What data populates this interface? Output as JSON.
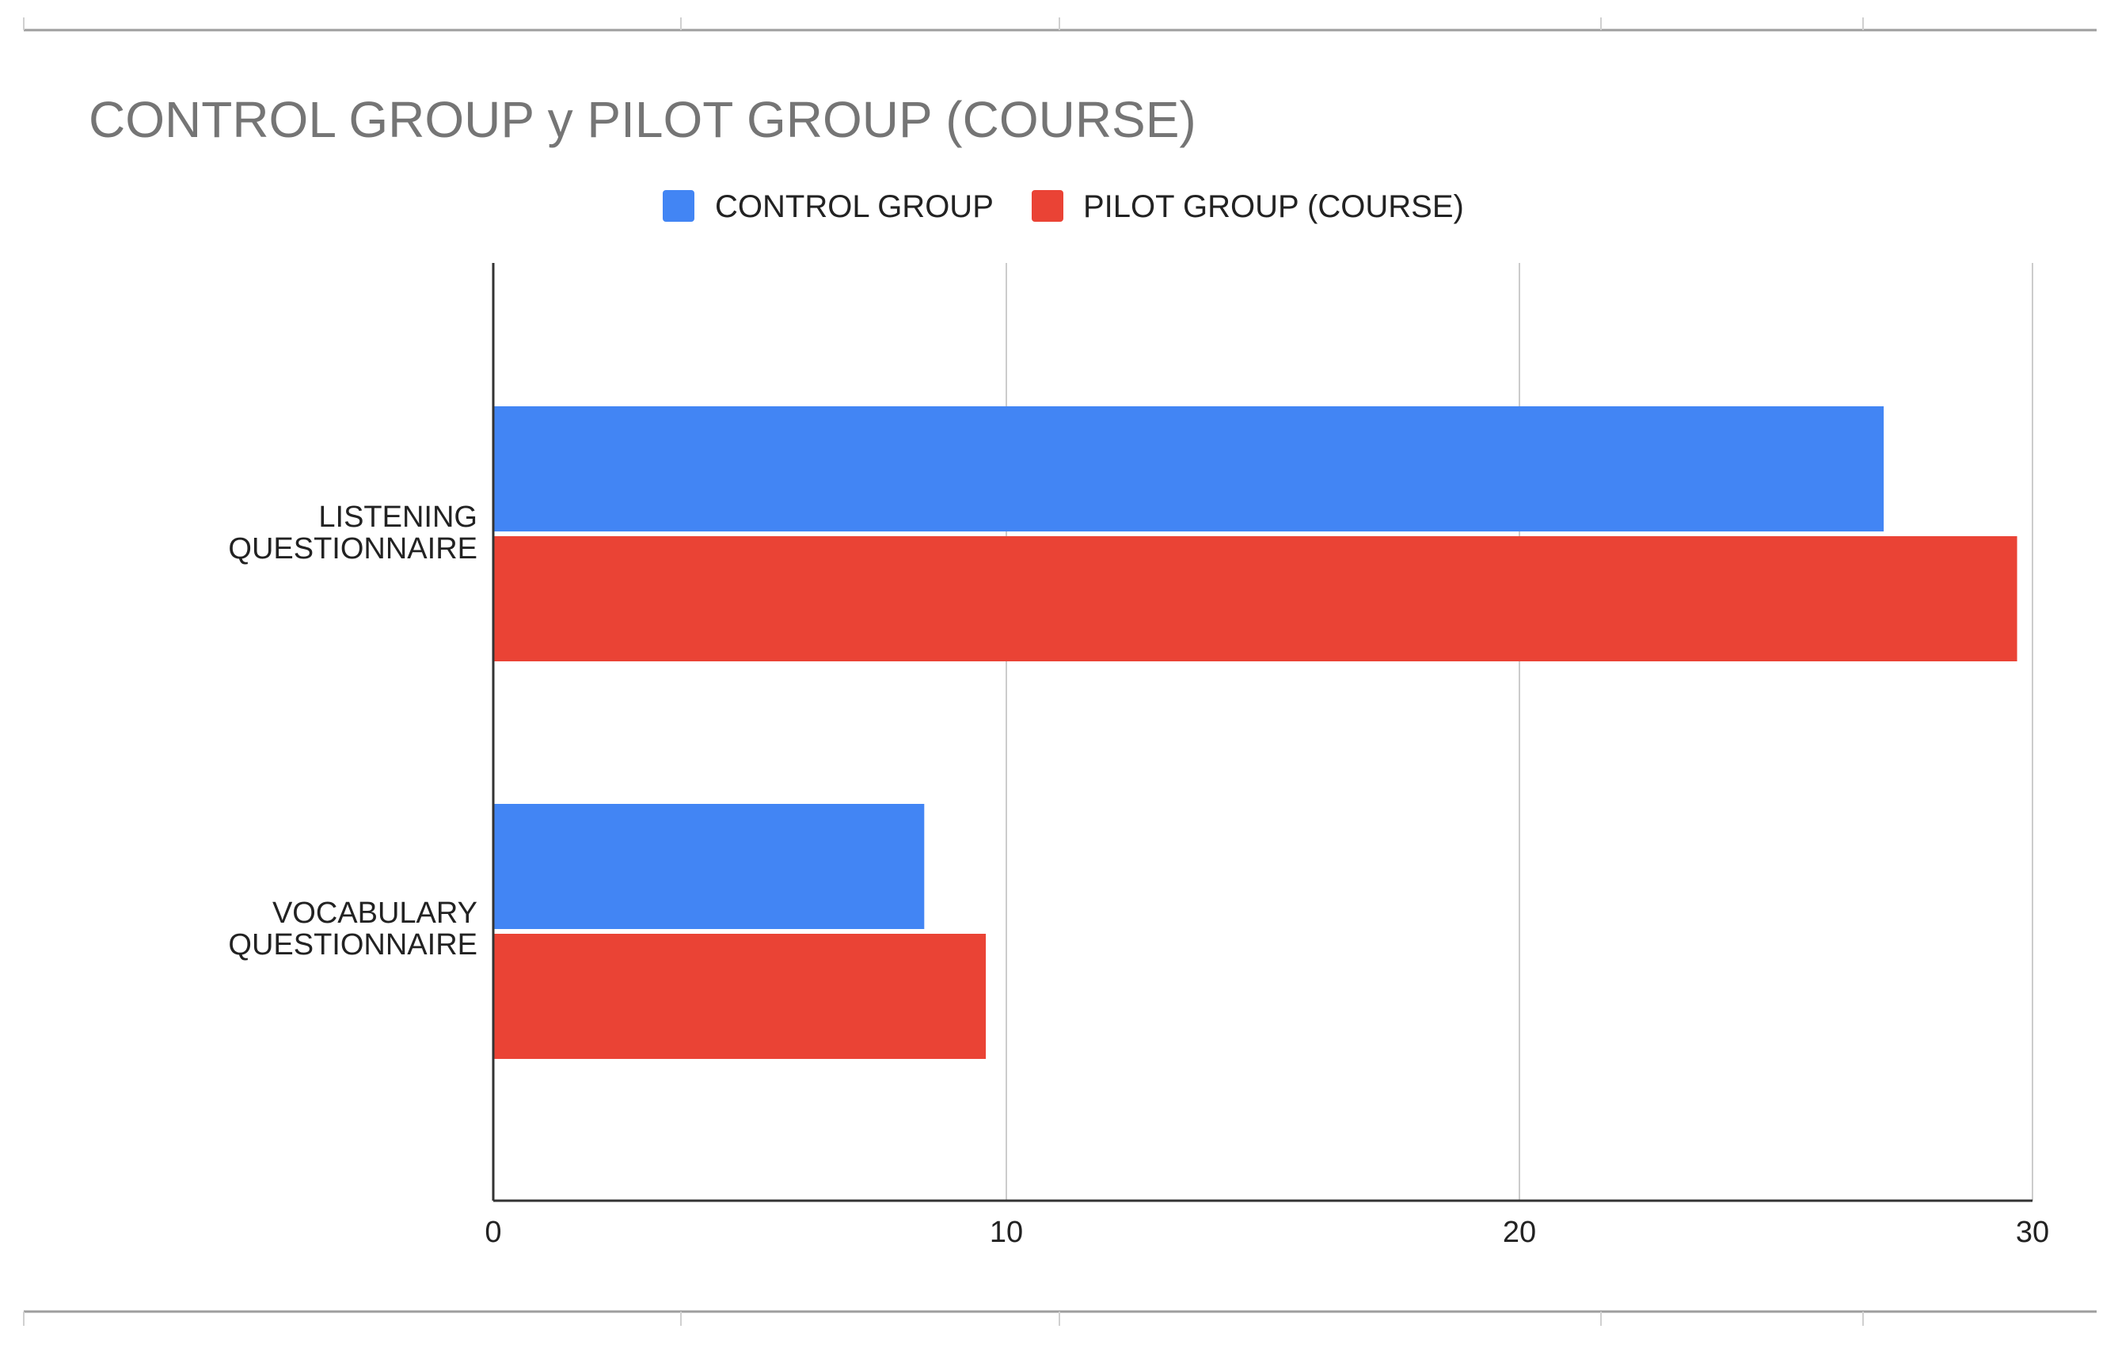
{
  "chart_data": {
    "type": "bar",
    "orientation": "horizontal",
    "title": "CONTROL GROUP y PILOT GROUP (COURSE)",
    "xlabel": "",
    "ylabel": "",
    "categories": [
      [
        "LISTENING",
        "QUESTIONNAIRE"
      ],
      [
        "VOCABULARY",
        "QUESTIONNAIRE"
      ]
    ],
    "series": [
      {
        "name": "CONTROL GROUP",
        "color": "#4285f4",
        "values": [
          27.1,
          8.4
        ]
      },
      {
        "name": "PILOT GROUP (COURSE)",
        "color": "#ea4335",
        "values": [
          29.7,
          9.6
        ]
      }
    ],
    "xlim": [
      0,
      30
    ],
    "xticks": [
      0,
      10,
      20,
      30
    ],
    "xtick_labels": [
      "0",
      "10",
      "20",
      "30"
    ],
    "grid": true,
    "legend_position": "top"
  }
}
